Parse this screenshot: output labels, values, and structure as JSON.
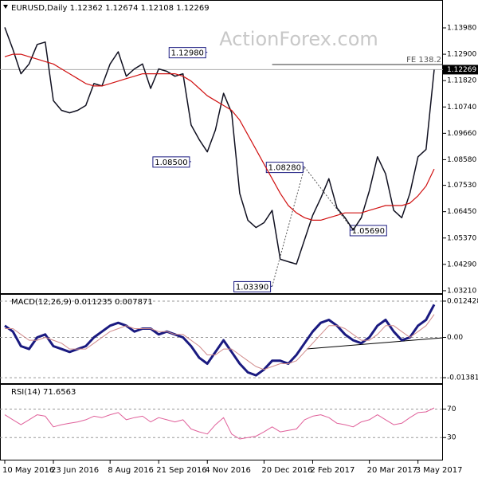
{
  "chart_data": [
    {
      "type": "line",
      "title": "EURUSD,Daily  1.12362 1.12674 1.12108 1.12269",
      "watermark": "ActionForex.com",
      "categories": [
        "10 May 2016",
        null,
        null,
        null,
        null,
        null,
        "23 Jun 2016",
        null,
        null,
        null,
        null,
        null,
        null,
        "8 Aug 2016",
        null,
        null,
        null,
        null,
        null,
        "21 Sep 2016",
        null,
        null,
        null,
        null,
        null,
        "4 Nov 2016",
        null,
        null,
        null,
        null,
        null,
        null,
        "20 Dec 2016",
        null,
        null,
        null,
        null,
        null,
        "2 Feb 2017",
        null,
        null,
        null,
        null,
        null,
        null,
        "20 Mar 2017",
        null,
        null,
        null,
        null,
        null,
        "3 May 2017",
        null,
        null
      ],
      "series": [
        {
          "color": "#101020",
          "width": 1.5,
          "values": [
            1.14,
            1.131,
            1.121,
            1.125,
            1.133,
            1.134,
            1.11,
            1.106,
            1.105,
            1.106,
            1.108,
            1.117,
            1.116,
            1.125,
            1.13,
            1.12,
            1.123,
            1.125,
            1.115,
            1.123,
            1.122,
            1.12,
            1.121,
            1.1,
            1.094,
            1.089,
            1.098,
            1.113,
            1.105,
            1.072,
            1.061,
            1.058,
            1.06,
            1.065,
            1.045,
            1.044,
            1.043,
            1.053,
            1.063,
            1.07,
            1.078,
            1.066,
            1.062,
            1.057,
            1.062,
            1.073,
            1.087,
            1.08,
            1.065,
            1.062,
            1.072,
            1.087,
            1.09,
            1.12269
          ]
        },
        {
          "color": "#d01010",
          "width": 1.2,
          "values": [
            1.128,
            1.129,
            1.129,
            1.128,
            1.127,
            1.126,
            1.125,
            1.123,
            1.121,
            1.119,
            1.117,
            1.116,
            1.116,
            1.117,
            1.118,
            1.119,
            1.12,
            1.121,
            1.121,
            1.121,
            1.121,
            1.121,
            1.12,
            1.118,
            1.115,
            1.112,
            1.11,
            1.108,
            1.106,
            1.102,
            1.096,
            1.09,
            1.084,
            1.078,
            1.072,
            1.067,
            1.064,
            1.062,
            1.061,
            1.061,
            1.062,
            1.063,
            1.064,
            1.064,
            1.064,
            1.065,
            1.066,
            1.067,
            1.067,
            1.067,
            1.068,
            1.071,
            1.075,
            1.082
          ]
        }
      ],
      "ylim": [
        1.0311,
        1.1509
      ],
      "yticks": [
        {
          "value": 1.1398,
          "label": "1.13980"
        },
        {
          "value": 1.129,
          "label": "1.12900"
        },
        {
          "value": 1.1182,
          "label": "1.11820"
        },
        {
          "value": 1.1074,
          "label": "1.10740"
        },
        {
          "value": 1.0966,
          "label": "1.09660"
        },
        {
          "value": 1.0858,
          "label": "1.08580"
        },
        {
          "value": 1.0753,
          "label": "1.07530"
        },
        {
          "value": 1.0645,
          "label": "1.06450"
        },
        {
          "value": 1.0537,
          "label": "1.05370"
        },
        {
          "value": 1.0429,
          "label": "1.04290"
        },
        {
          "value": 1.0321,
          "label": "1.03210"
        }
      ],
      "grid": false,
      "last": {
        "value": 1.12269,
        "label": "1.12269"
      },
      "level": {
        "value": 1.1248,
        "label": "FE 138.2",
        "from": 33
      },
      "annotations": [
        {
          "value": 1.1298,
          "label": "1.12980",
          "at": 25,
          "side": "left"
        },
        {
          "value": 1.085,
          "label": "1.08500",
          "at": 23,
          "side": "left"
        },
        {
          "value": 1.0828,
          "label": "1.08280",
          "at": 37,
          "side": "left"
        },
        {
          "value": 1.0339,
          "label": "1.03390",
          "at": 33,
          "side": "left"
        },
        {
          "value": 1.0569,
          "label": "1.05690",
          "at": 43,
          "side": "right"
        }
      ]
    },
    {
      "type": "line",
      "title": "MACD(12,26,9) 0.011235 0.007871",
      "series": [
        {
          "color": "#1a1a80",
          "width": 3,
          "values": [
            0.004,
            0.002,
            -0.003,
            -0.004,
            0.0,
            0.001,
            -0.003,
            -0.004,
            -0.005,
            -0.004,
            -0.003,
            0.0,
            0.002,
            0.004,
            0.005,
            0.004,
            0.002,
            0.003,
            0.003,
            0.001,
            0.002,
            0.001,
            0.0,
            -0.003,
            -0.007,
            -0.009,
            -0.005,
            -0.001,
            -0.005,
            -0.009,
            -0.012,
            -0.013,
            -0.011,
            -0.008,
            -0.008,
            -0.009,
            -0.006,
            -0.002,
            0.002,
            0.005,
            0.006,
            0.004,
            0.001,
            -0.001,
            -0.002,
            0.0,
            0.004,
            0.006,
            0.002,
            -0.001,
            0.0,
            0.004,
            0.006,
            0.011235
          ]
        },
        {
          "color": "#d08a8a",
          "width": 1,
          "values": [
            0.003,
            0.003,
            0.001,
            -0.001,
            -0.001,
            0.0,
            -0.001,
            -0.002,
            -0.004,
            -0.004,
            -0.004,
            -0.002,
            0.0,
            0.002,
            0.003,
            0.004,
            0.003,
            0.003,
            0.003,
            0.002,
            0.002,
            0.001,
            0.001,
            -0.001,
            -0.003,
            -0.006,
            -0.006,
            -0.004,
            -0.004,
            -0.006,
            -0.008,
            -0.01,
            -0.011,
            -0.01,
            -0.009,
            -0.009,
            -0.008,
            -0.005,
            -0.002,
            0.001,
            0.004,
            0.004,
            0.003,
            0.001,
            -0.001,
            -0.001,
            0.001,
            0.004,
            0.004,
            0.002,
            0.0,
            0.002,
            0.004,
            0.007871
          ]
        }
      ],
      "ylim": [
        -0.0157,
        0.0146
      ],
      "yticks": [
        0.012428,
        {
          "value": 0,
          "label": "0.00"
        },
        -0.01381
      ],
      "grid": true
    },
    {
      "type": "line",
      "title": "RSI(14) 71.6563",
      "series": [
        {
          "color": "#e0609a",
          "width": 1,
          "values": [
            62,
            55,
            48,
            55,
            62,
            60,
            45,
            48,
            50,
            52,
            55,
            60,
            58,
            62,
            65,
            55,
            58,
            60,
            52,
            58,
            55,
            52,
            55,
            42,
            38,
            35,
            48,
            58,
            35,
            28,
            30,
            32,
            38,
            45,
            38,
            40,
            42,
            55,
            60,
            62,
            58,
            50,
            48,
            45,
            52,
            55,
            62,
            55,
            48,
            50,
            58,
            65,
            66,
            71.6563
          ]
        }
      ],
      "ylim": [
        -1,
        104
      ],
      "yticks": [
        70,
        30
      ],
      "grid": true
    }
  ]
}
